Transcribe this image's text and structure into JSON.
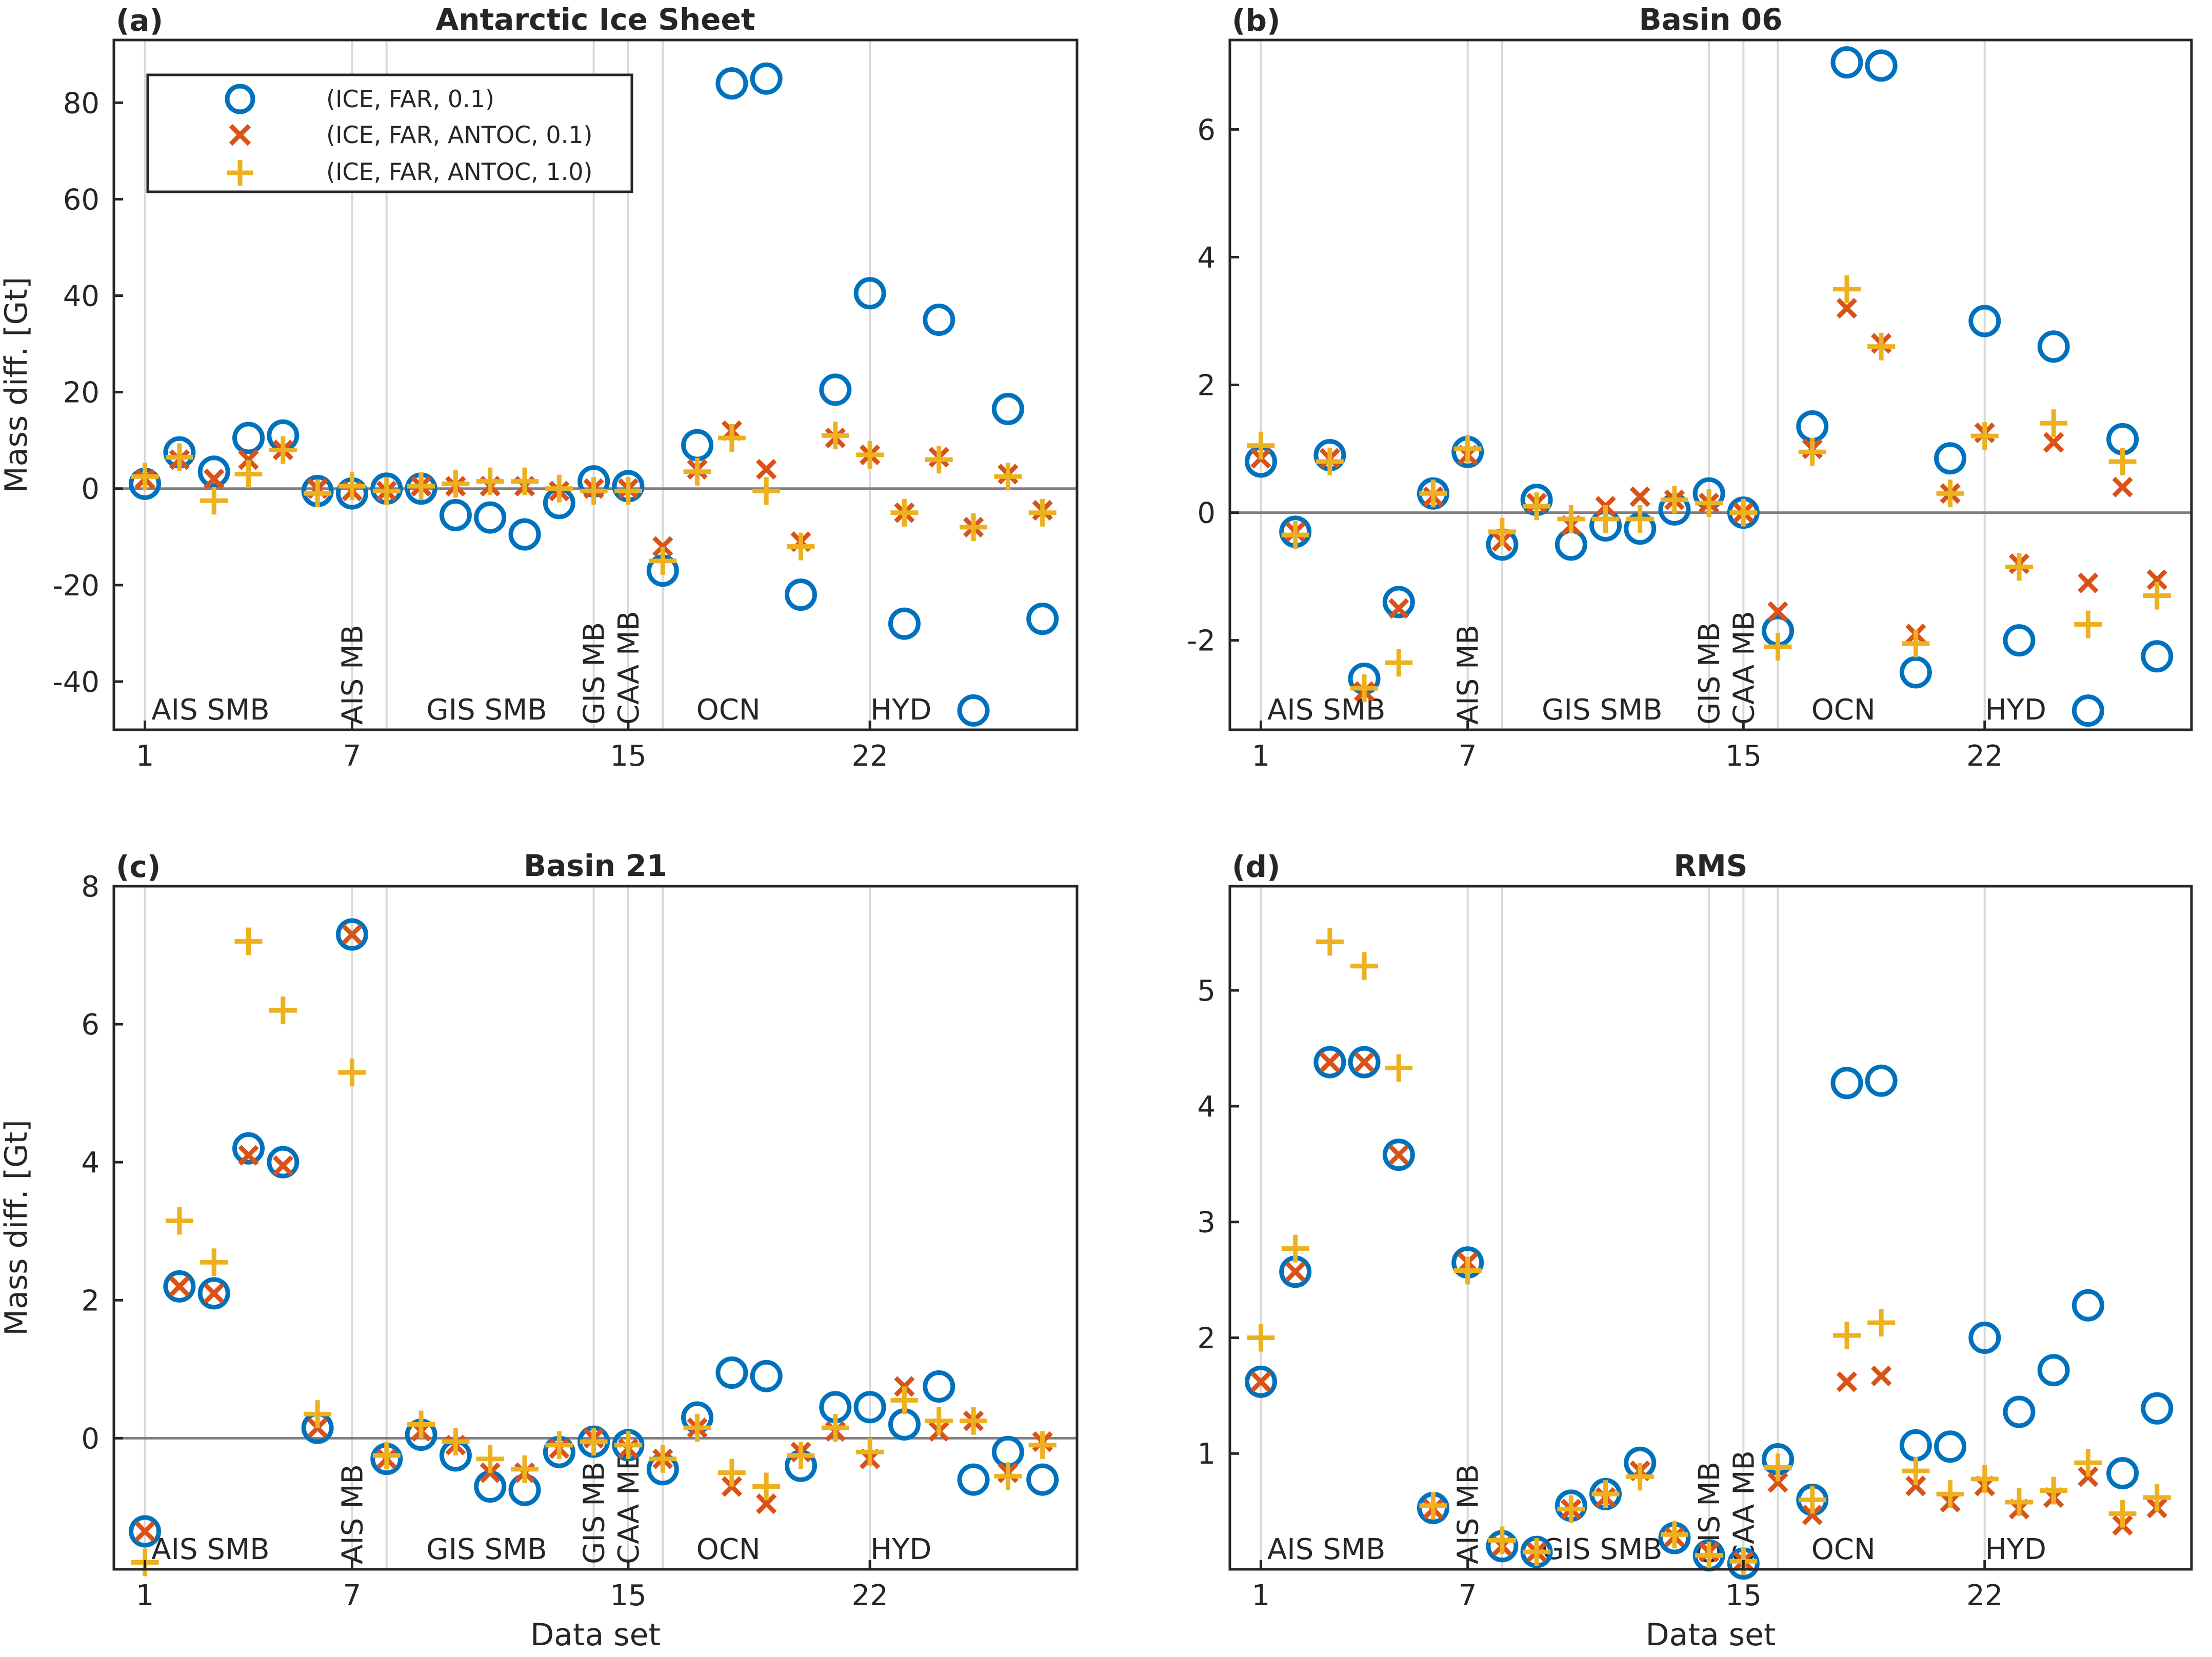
{
  "figure": {
    "xlabel": "Data set",
    "ylabel": "Mass diff. [Gt]",
    "colors": {
      "circle": "#0072BD",
      "cross": "#D95319",
      "plus": "#EDB120",
      "zero_line": "#808080",
      "grid": "#d9d9d9",
      "frame": "#262626"
    }
  },
  "legend": {
    "entries": [
      {
        "label": "(ICE, FAR, 0.1)",
        "marker": "circle"
      },
      {
        "label": "(ICE, FAR, ANTOC, 0.1)",
        "marker": "cross"
      },
      {
        "label": "(ICE, FAR, ANTOC, 1.0)",
        "marker": "plus"
      }
    ]
  },
  "chart_data": [
    {
      "type": "scatter",
      "panel": "(a)",
      "title": "Antarctic Ice Sheet",
      "xlabel": "",
      "ylabel": "Mass diff. [Gt]",
      "xlim": [
        0.1,
        28
      ],
      "ylim": [
        -50,
        93
      ],
      "xticks": [
        1,
        7,
        15,
        22
      ],
      "yticks": [
        -40,
        -20,
        0,
        20,
        40,
        60,
        80
      ],
      "ytick_labels": [
        "-40",
        "-20",
        "0",
        "20",
        "40",
        "60",
        "80"
      ],
      "vlines": [
        1,
        7,
        8,
        14,
        15,
        16,
        22
      ],
      "zero_line": true,
      "groups": [
        {
          "label": "AIS SMB",
          "x": 2.9,
          "rotated": false
        },
        {
          "label": "AIS MB",
          "x": 7,
          "rotated": true
        },
        {
          "label": "GIS SMB",
          "x": 10.9,
          "rotated": false
        },
        {
          "label": "GIS MB",
          "x": 14,
          "rotated": true
        },
        {
          "label": "CAA MB",
          "x": 15,
          "rotated": true
        },
        {
          "label": "OCN",
          "x": 17.9,
          "rotated": false
        },
        {
          "label": "HYD",
          "x": 22.9,
          "rotated": false
        }
      ],
      "x": [
        1,
        2,
        3,
        4,
        5,
        6,
        7,
        8,
        9,
        10,
        11,
        12,
        13,
        14,
        15,
        16,
        17,
        18,
        19,
        20,
        21,
        22,
        23,
        24,
        25,
        26,
        27
      ],
      "series": [
        {
          "name": "(ICE, FAR, 0.1)",
          "marker": "circle",
          "values": [
            1,
            7.5,
            3.5,
            10.5,
            11,
            -0.5,
            -1,
            0,
            0,
            -5.5,
            -6,
            -9.5,
            -3,
            1.5,
            0.5,
            -17,
            9,
            84,
            85,
            -22,
            20.5,
            40.5,
            -28,
            35,
            -46,
            16.5,
            -27
          ]
        },
        {
          "name": "(ICE, FAR, ANTOC, 0.1)",
          "marker": "cross",
          "values": [
            2,
            6,
            2,
            6,
            8,
            0,
            -0.5,
            -0.5,
            0.5,
            0.5,
            0.5,
            0.5,
            -0.5,
            0,
            0,
            -12,
            4,
            12,
            4,
            -11,
            10.5,
            7,
            -5,
            6.5,
            -8,
            3,
            -4.5
          ]
        },
        {
          "name": "(ICE, FAR, ANTOC, 1.0)",
          "marker": "plus",
          "values": [
            2.5,
            6.5,
            -2.5,
            3,
            8,
            -1,
            0.5,
            -0.5,
            0.5,
            1,
            1.5,
            1.5,
            0,
            -0.5,
            -0.5,
            -15,
            3.5,
            10.5,
            -0.5,
            -12,
            11,
            7,
            -5,
            6,
            -8,
            2.5,
            -5
          ]
        }
      ]
    },
    {
      "type": "scatter",
      "panel": "(b)",
      "title": "Basin 06",
      "xlabel": "",
      "ylabel": "",
      "xlim": [
        0.1,
        28
      ],
      "ylim": [
        -3.4,
        7.4
      ],
      "xticks": [
        1,
        7,
        15,
        22
      ],
      "yticks": [
        -2,
        0,
        2,
        4,
        6
      ],
      "ytick_labels": [
        "-2",
        "0",
        "2",
        "4",
        "6"
      ],
      "vlines": [
        1,
        7,
        8,
        14,
        15,
        16,
        22
      ],
      "zero_line": true,
      "groups": [
        {
          "label": "AIS SMB",
          "x": 2.9,
          "rotated": false
        },
        {
          "label": "AIS MB",
          "x": 7,
          "rotated": true
        },
        {
          "label": "GIS SMB",
          "x": 10.9,
          "rotated": false
        },
        {
          "label": "GIS MB",
          "x": 14,
          "rotated": true
        },
        {
          "label": "CAA MB",
          "x": 15,
          "rotated": true
        },
        {
          "label": "OCN",
          "x": 17.9,
          "rotated": false
        },
        {
          "label": "HYD",
          "x": 22.9,
          "rotated": false
        }
      ],
      "x": [
        1,
        2,
        3,
        4,
        5,
        6,
        7,
        8,
        9,
        10,
        11,
        12,
        13,
        14,
        15,
        16,
        17,
        18,
        19,
        20,
        21,
        22,
        23,
        24,
        25,
        26,
        27
      ],
      "series": [
        {
          "name": "(ICE, FAR, 0.1)",
          "marker": "circle",
          "values": [
            0.8,
            -0.3,
            0.9,
            -2.6,
            -1.4,
            0.3,
            0.95,
            -0.5,
            0.2,
            -0.5,
            -0.2,
            -0.25,
            0.05,
            0.3,
            0.0,
            -1.85,
            1.35,
            7.05,
            7.0,
            -2.5,
            0.85,
            3.0,
            -2.0,
            2.6,
            -3.1,
            1.15,
            -2.25
          ]
        },
        {
          "name": "(ICE, FAR, ANTOC, 0.1)",
          "marker": "cross",
          "values": [
            0.85,
            -0.3,
            0.85,
            -2.8,
            -1.5,
            0.25,
            0.9,
            -0.45,
            0.15,
            -0.2,
            0.1,
            0.25,
            0.2,
            0.15,
            0.0,
            -1.55,
            1.0,
            3.2,
            2.65,
            -1.9,
            0.3,
            1.25,
            -0.8,
            1.1,
            -1.1,
            0.4,
            -1.05
          ]
        },
        {
          "name": "(ICE, FAR, ANTOC, 1.0)",
          "marker": "plus",
          "values": [
            1.05,
            -0.35,
            0.8,
            -2.75,
            -2.35,
            0.3,
            1.0,
            -0.3,
            0.1,
            -0.1,
            -0.1,
            -0.1,
            0.2,
            0.15,
            0.0,
            -2.1,
            0.95,
            3.5,
            2.6,
            -2.05,
            0.3,
            1.2,
            -0.85,
            1.4,
            -1.75,
            0.8,
            -1.3
          ]
        }
      ]
    },
    {
      "type": "scatter",
      "panel": "(c)",
      "title": "Basin 21",
      "xlabel": "Data set",
      "ylabel": "Mass diff. [Gt]",
      "xlim": [
        0.1,
        28
      ],
      "ylim": [
        -1.9,
        8
      ],
      "xticks": [
        1,
        7,
        15,
        22
      ],
      "yticks": [
        0,
        2,
        4,
        6,
        8
      ],
      "ytick_labels": [
        "0",
        "2",
        "4",
        "6",
        "8"
      ],
      "vlines": [
        1,
        7,
        8,
        14,
        15,
        16,
        22
      ],
      "zero_line": true,
      "groups": [
        {
          "label": "AIS SMB",
          "x": 2.9,
          "rotated": false
        },
        {
          "label": "AIS MB",
          "x": 7,
          "rotated": true
        },
        {
          "label": "GIS SMB",
          "x": 10.9,
          "rotated": false
        },
        {
          "label": "GIS MB",
          "x": 14,
          "rotated": true
        },
        {
          "label": "CAA MB",
          "x": 15,
          "rotated": true
        },
        {
          "label": "OCN",
          "x": 17.9,
          "rotated": false
        },
        {
          "label": "HYD",
          "x": 22.9,
          "rotated": false
        }
      ],
      "x": [
        1,
        2,
        3,
        4,
        5,
        6,
        7,
        8,
        9,
        10,
        11,
        12,
        13,
        14,
        15,
        16,
        17,
        18,
        19,
        20,
        21,
        22,
        23,
        24,
        25,
        26,
        27
      ],
      "series": [
        {
          "name": "(ICE, FAR, 0.1)",
          "marker": "circle",
          "values": [
            -1.35,
            2.2,
            2.1,
            4.2,
            4.0,
            0.15,
            7.3,
            -0.3,
            0.05,
            -0.25,
            -0.7,
            -0.75,
            -0.2,
            -0.05,
            -0.1,
            -0.45,
            0.3,
            0.95,
            0.9,
            -0.4,
            0.45,
            0.45,
            0.2,
            0.75,
            -0.6,
            -0.2,
            -0.6
          ]
        },
        {
          "name": "(ICE, FAR, ANTOC, 0.1)",
          "marker": "cross",
          "values": [
            -1.35,
            2.2,
            2.1,
            4.1,
            3.95,
            0.15,
            7.3,
            -0.3,
            0.1,
            -0.1,
            -0.5,
            -0.5,
            -0.15,
            0.0,
            -0.15,
            -0.3,
            0.15,
            -0.7,
            -0.95,
            -0.2,
            0.1,
            -0.3,
            0.75,
            0.1,
            0.25,
            -0.5,
            -0.05
          ]
        },
        {
          "name": "(ICE, FAR, ANTOC, 1.0)",
          "marker": "plus",
          "values": [
            -1.8,
            3.15,
            2.55,
            7.2,
            6.2,
            0.35,
            5.3,
            -0.25,
            0.2,
            -0.05,
            -0.3,
            -0.45,
            -0.1,
            -0.05,
            -0.1,
            -0.3,
            0.15,
            -0.5,
            -0.7,
            -0.25,
            0.15,
            -0.2,
            0.55,
            0.25,
            0.25,
            -0.55,
            -0.1
          ]
        }
      ]
    },
    {
      "type": "scatter",
      "panel": "(d)",
      "title": "RMS",
      "xlabel": "Data set",
      "ylabel": "",
      "xlim": [
        0.1,
        28
      ],
      "ylim": [
        0,
        5.9
      ],
      "xticks": [
        1,
        7,
        15,
        22
      ],
      "yticks": [
        1,
        2,
        3,
        4,
        5
      ],
      "ytick_labels": [
        "1",
        "2",
        "3",
        "4",
        "5"
      ],
      "vlines": [
        1,
        7,
        8,
        14,
        15,
        16,
        22
      ],
      "zero_line": false,
      "groups": [
        {
          "label": "AIS SMB",
          "x": 2.9,
          "rotated": false
        },
        {
          "label": "AIS MB",
          "x": 7,
          "rotated": true
        },
        {
          "label": "GIS SMB",
          "x": 10.9,
          "rotated": false
        },
        {
          "label": "GIS MB",
          "x": 14,
          "rotated": true
        },
        {
          "label": "CAA MB",
          "x": 15,
          "rotated": true
        },
        {
          "label": "OCN",
          "x": 17.9,
          "rotated": false
        },
        {
          "label": "HYD",
          "x": 22.9,
          "rotated": false
        }
      ],
      "x": [
        1,
        2,
        3,
        4,
        5,
        6,
        7,
        8,
        9,
        10,
        11,
        12,
        13,
        14,
        15,
        16,
        17,
        18,
        19,
        20,
        21,
        22,
        23,
        24,
        25,
        26,
        27
      ],
      "series": [
        {
          "name": "(ICE, FAR, 0.1)",
          "marker": "circle",
          "values": [
            1.62,
            2.57,
            4.38,
            4.38,
            3.58,
            0.53,
            2.65,
            0.2,
            0.15,
            0.55,
            0.65,
            0.92,
            0.27,
            0.12,
            0.05,
            0.95,
            0.6,
            4.2,
            4.22,
            1.07,
            1.06,
            2.0,
            1.36,
            1.72,
            2.28,
            0.83,
            1.39
          ]
        },
        {
          "name": "(ICE, FAR, ANTOC, 0.1)",
          "marker": "cross",
          "values": [
            1.62,
            2.57,
            4.38,
            4.38,
            3.58,
            0.52,
            2.65,
            0.2,
            0.15,
            0.52,
            0.62,
            0.85,
            0.28,
            0.15,
            0.07,
            0.75,
            0.47,
            1.62,
            1.67,
            0.72,
            0.58,
            0.72,
            0.52,
            0.62,
            0.8,
            0.38,
            0.53
          ]
        },
        {
          "name": "(ICE, FAR, ANTOC, 1.0)",
          "marker": "plus",
          "values": [
            2.0,
            2.77,
            5.42,
            5.21,
            4.33,
            0.55,
            2.58,
            0.25,
            0.15,
            0.52,
            0.65,
            0.8,
            0.3,
            0.12,
            0.07,
            0.88,
            0.6,
            2.02,
            2.13,
            0.85,
            0.65,
            0.78,
            0.58,
            0.68,
            0.92,
            0.48,
            0.62
          ]
        }
      ]
    }
  ]
}
